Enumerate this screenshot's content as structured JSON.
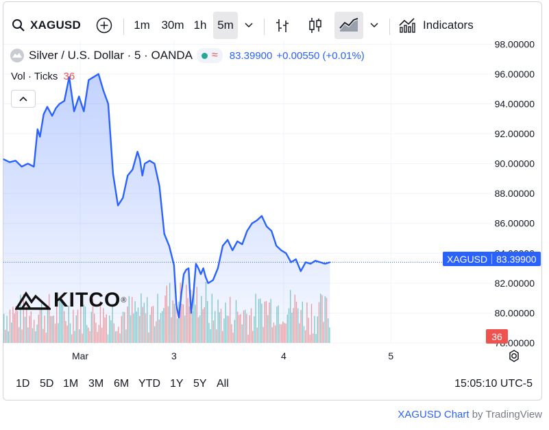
{
  "toolbar": {
    "symbol": "XAGUSD",
    "intervals": [
      "1m",
      "30m",
      "1h",
      "5m"
    ],
    "active_interval": "5m",
    "indicators_label": "Indicators"
  },
  "legend": {
    "title": "Silver / U.S. Dollar · 5 · OANDA",
    "price": "83.39900",
    "change": "+0.00550 (+0.01%)",
    "market_status_color": "#26a69a"
  },
  "volume_legend": {
    "label": "Vol · Ticks",
    "value": "36"
  },
  "logo_text": "KITCO",
  "price_badge": {
    "symbol": "XAGUSD",
    "price": "83.39900"
  },
  "volume_badge": "36",
  "ranges": [
    "1D",
    "5D",
    "1M",
    "3M",
    "6M",
    "YTD",
    "1Y",
    "5Y",
    "All"
  ],
  "clock": "15:05:10 UTC-5",
  "footer": {
    "chart": "XAGUSD Chart",
    "by": " by TradingView"
  },
  "colors": {
    "line": "#2962ff",
    "up_volume": "#26a69a",
    "down_volume": "#ef5350",
    "accent": "#2962ff"
  },
  "chart_data": {
    "type": "area",
    "title": "Silver / U.S. Dollar · 5 · OANDA",
    "y_ticks": [
      "98.00000",
      "96.00000",
      "94.00000",
      "92.00000",
      "90.00000",
      "88.00000",
      "86.00000",
      "84.00000",
      "82.00000",
      "80.00000",
      "78.00000"
    ],
    "ylim": [
      78,
      98.2
    ],
    "x_ticks": [
      "Mar",
      "3",
      "4",
      "5"
    ],
    "x_tick_positions": [
      0.23,
      1.0,
      1.9,
      2.78
    ],
    "xlim": [
      -0.4,
      3.2
    ],
    "last_price": 83.399,
    "x": [
      -0.4,
      -0.35,
      -0.3,
      -0.25,
      -0.2,
      -0.15,
      -0.12,
      -0.1,
      -0.07,
      -0.04,
      0.0,
      0.03,
      0.06,
      0.1,
      0.14,
      0.18,
      0.22,
      0.26,
      0.3,
      0.34,
      0.38,
      0.42,
      0.46,
      0.5,
      0.54,
      0.58,
      0.62,
      0.66,
      0.7,
      0.72,
      0.74,
      0.76,
      0.8,
      0.84,
      0.88,
      0.92,
      0.96,
      1.0,
      1.02,
      1.04,
      1.06,
      1.08,
      1.1,
      1.12,
      1.14,
      1.16,
      1.18,
      1.2,
      1.22,
      1.24,
      1.26,
      1.28,
      1.32,
      1.36,
      1.4,
      1.44,
      1.48,
      1.52,
      1.56,
      1.6,
      1.64,
      1.68,
      1.72,
      1.76,
      1.8,
      1.84,
      1.88,
      1.92,
      1.96,
      2.0,
      2.04,
      2.08,
      2.12,
      2.16,
      2.2,
      2.24,
      2.28
    ],
    "y": [
      90.3,
      90.1,
      90.2,
      89.8,
      90.0,
      89.8,
      92.3,
      91.8,
      93.3,
      93.8,
      93.2,
      93.7,
      94.0,
      94.2,
      95.8,
      93.5,
      94.5,
      93.5,
      95.6,
      95.8,
      96.0,
      94.9,
      94.0,
      89.3,
      87.2,
      87.7,
      89.2,
      89.6,
      90.8,
      90.3,
      89.2,
      90.0,
      90.2,
      90.0,
      88.5,
      85.3,
      84.5,
      83.2,
      80.5,
      79.7,
      81.3,
      82.6,
      82.9,
      83.0,
      80.0,
      81.3,
      83.3,
      83.0,
      82.6,
      83.0,
      82.4,
      82.0,
      82.2,
      83.0,
      84.5,
      84.9,
      84.2,
      84.8,
      84.6,
      85.5,
      86.0,
      86.2,
      86.5,
      85.8,
      85.5,
      84.5,
      84.2,
      84.0,
      83.4,
      83.6,
      82.8,
      83.4,
      83.3,
      83.5,
      83.4,
      83.3,
      83.399
    ],
    "volume_last": 36
  }
}
